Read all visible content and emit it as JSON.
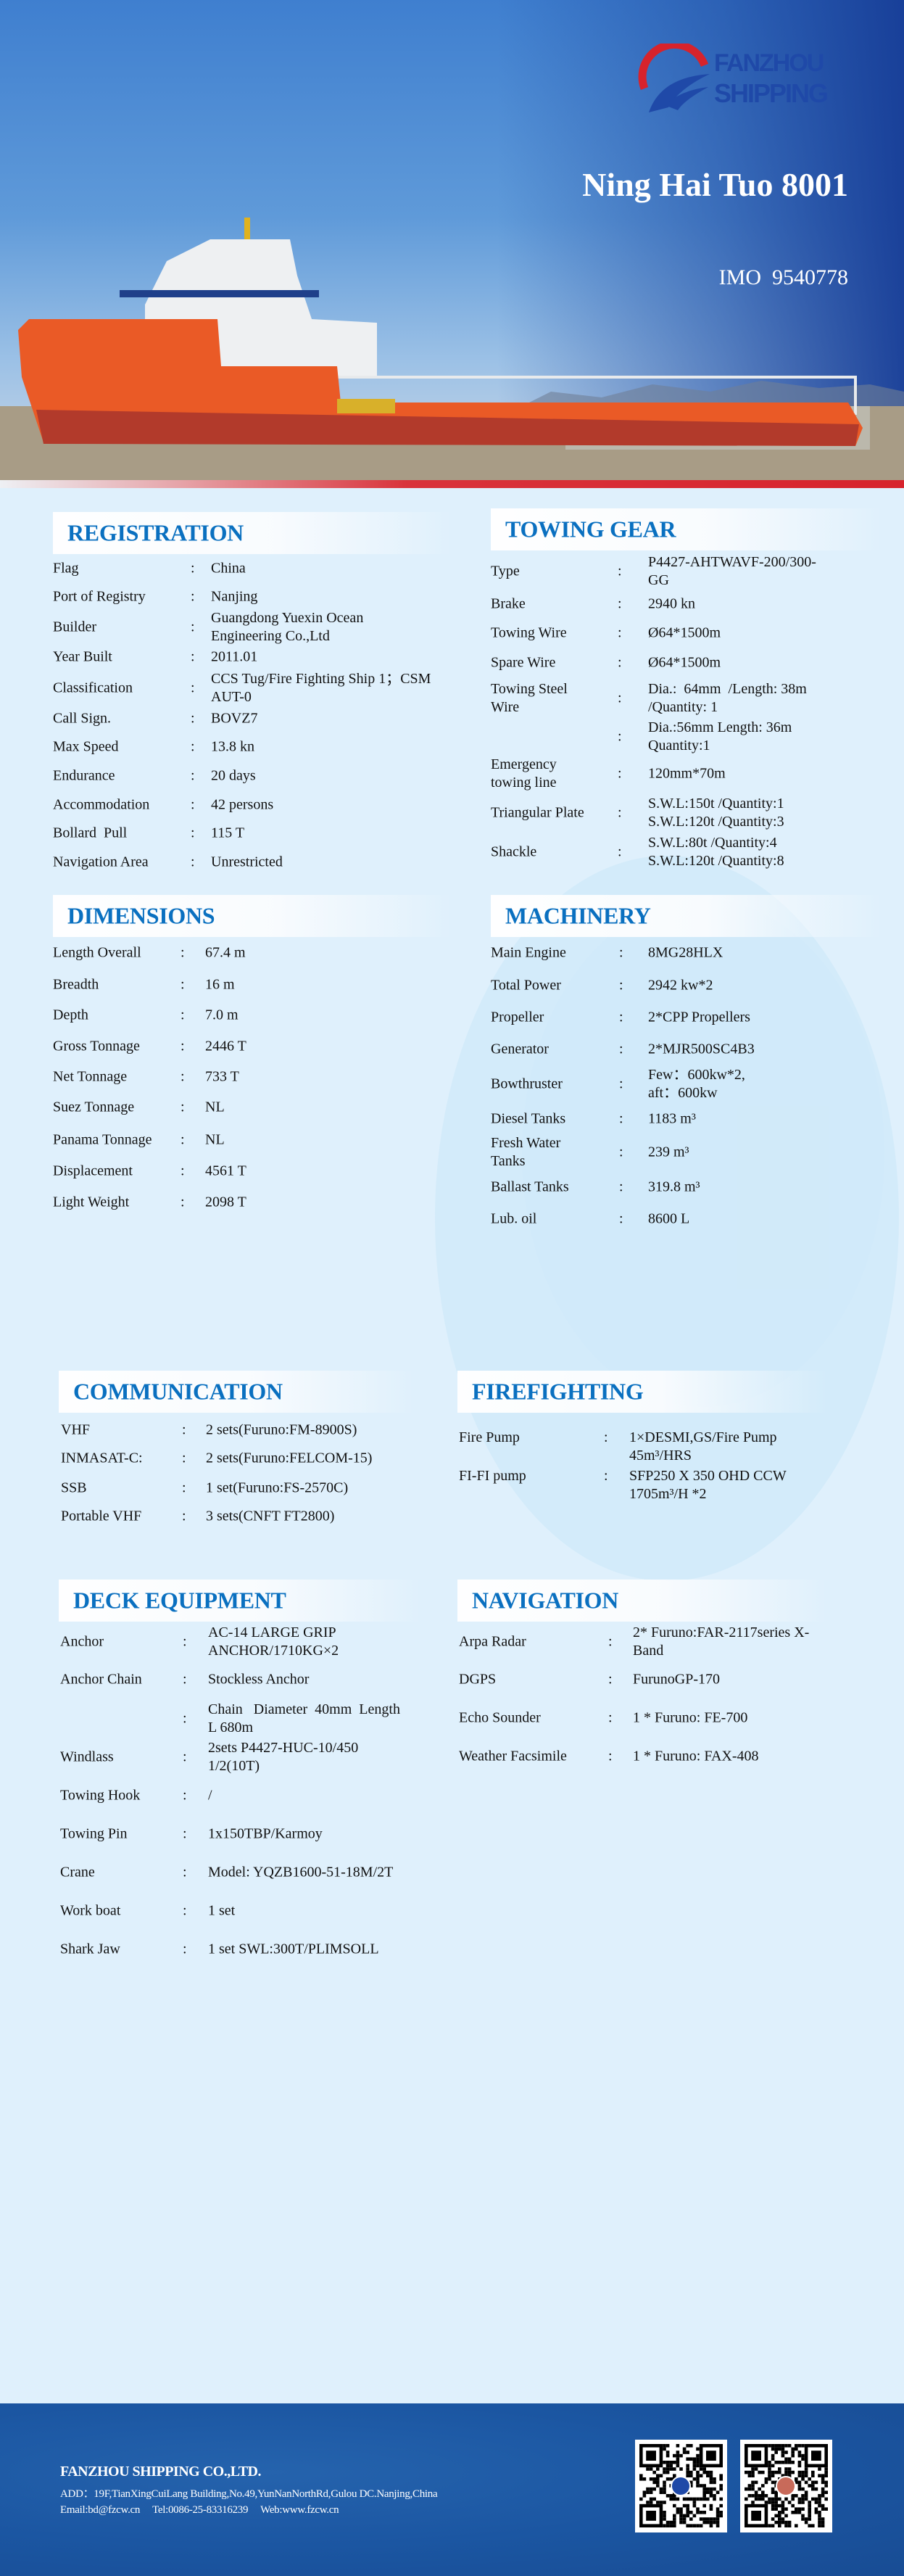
{
  "hero": {
    "logo_text": [
      "FANZHOU",
      "SHIPPING"
    ],
    "vessel_name": "Ning Hai Tuo 8001",
    "imo": "IMO  9540778"
  },
  "colors": {
    "accent": "#0a70c0",
    "brand_red": "#d7232c",
    "brand_blue": "#1f49a8",
    "page_bg": "#dff0fc"
  },
  "sections": {
    "registration": {
      "title": "REGISTRATION",
      "rows": [
        {
          "label": "Flag",
          "value": "China"
        },
        {
          "label": "Port of Registry",
          "value": "Nanjing"
        },
        {
          "label": "Builder",
          "value": "Guangdong Yuexin Ocean\nEngineering Co.,Ltd"
        },
        {
          "label": "Year Built",
          "value": "2011.01"
        },
        {
          "label": "Classification",
          "value": "CCS Tug/Fire Fighting Ship 1；CSM\nAUT-0"
        },
        {
          "label": "Call Sign.",
          "value": "BOVZ7"
        },
        {
          "label": "Max Speed",
          "value": "13.8 kn"
        },
        {
          "label": "Endurance",
          "value": "20 days"
        },
        {
          "label": "Accommodation",
          "value": "42 persons"
        },
        {
          "label": "Bollard  Pull",
          "value": "115 T"
        },
        {
          "label": "Navigation Area",
          "value": "Unrestricted"
        }
      ]
    },
    "towing_gear": {
      "title": "TOWING GEAR",
      "rows": [
        {
          "label": "Type",
          "value": "P4427-AHTWAVF-200/300-\nGG"
        },
        {
          "label": "Brake",
          "value": "2940 kn"
        },
        {
          "label": "Towing Wire",
          "value": "Ø64*1500m"
        },
        {
          "label": "Spare Wire",
          "value": "Ø64*1500m"
        },
        {
          "label": "Towing Steel\nWire",
          "value": "Dia.:  64mm  /Length: 38m\n/Quantity: 1"
        },
        {
          "label": "",
          "value": "Dia.:56mm Length: 36m\nQuantity:1"
        },
        {
          "label": "Emergency\ntowing line",
          "value": "120mm*70m"
        },
        {
          "label": "Triangular Plate",
          "value": "S.W.L:150t /Quantity:1\nS.W.L:120t /Quantity:3"
        },
        {
          "label": "Shackle",
          "value": "S.W.L:80t /Quantity:4\nS.W.L:120t /Quantity:8"
        }
      ]
    },
    "dimensions": {
      "title": "DIMENSIONS",
      "rows": [
        {
          "label": "Length Overall",
          "value": "67.4 m"
        },
        {
          "label": "Breadth",
          "value": "16 m"
        },
        {
          "label": "Depth",
          "value": "7.0 m"
        },
        {
          "label": "Gross Tonnage",
          "value": "2446 T"
        },
        {
          "label": "Net Tonnage",
          "value": "733 T"
        },
        {
          "label": "Suez Tonnage",
          "value": "NL"
        },
        {
          "label": "Panama Tonnage",
          "value": "NL"
        },
        {
          "label": "Displacement",
          "value": "4561 T"
        },
        {
          "label": "Light Weight",
          "value": "2098 T"
        }
      ]
    },
    "machinery": {
      "title": "MACHINERY",
      "rows": [
        {
          "label": "Main Engine",
          "value": "8MG28HLX"
        },
        {
          "label": "Total Power",
          "value": "2942 kw*2"
        },
        {
          "label": "Propeller",
          "value": "2*CPP Propellers"
        },
        {
          "label": "Generator",
          "value": "2*MJR500SC4B3"
        },
        {
          "label": "Bowthruster",
          "value": "Few：600kw*2,\naft：600kw"
        },
        {
          "label": "Diesel Tanks",
          "value": "1183 m³"
        },
        {
          "label": "Fresh Water\nTanks",
          "value": "239 m³"
        },
        {
          "label": "Ballast Tanks",
          "value": "319.8 m³"
        },
        {
          "label": "Lub. oil",
          "value": "8600 L"
        }
      ]
    },
    "communication": {
      "title": "COMMUNICATION",
      "rows": [
        {
          "label": "VHF",
          "value": "2 sets(Furuno:FM-8900S)"
        },
        {
          "label": "INMASAT-C:",
          "value": "2 sets(Furuno:FELCOM-15)"
        },
        {
          "label": "SSB",
          "value": "1 set(Furuno:FS-2570C)"
        },
        {
          "label": "Portable VHF",
          "value": "3 sets(CNFT FT2800)"
        }
      ]
    },
    "firefighting": {
      "title": "FIREFIGHTING",
      "rows": [
        {
          "label": "Fire Pump",
          "value": "1×DESMI,GS/Fire Pump\n45m³/HRS"
        },
        {
          "label": "FI-FI pump",
          "value": "SFP250 X 350 OHD CCW\n1705m³/H *2"
        }
      ]
    },
    "deck_equipment": {
      "title": "DECK EQUIPMENT",
      "rows": [
        {
          "label": "Anchor",
          "value": "AC-14 LARGE GRIP\nANCHOR/1710KG×2"
        },
        {
          "label": "Anchor Chain",
          "value": "Stockless Anchor"
        },
        {
          "label": "",
          "value": "Chain   Diameter  40mm  Length\nL 680m"
        },
        {
          "label": "Windlass",
          "value": "2sets P4427-HUC-10/450\n1/2(10T)"
        },
        {
          "label": "Towing Hook",
          "value": "/"
        },
        {
          "label": "Towing Pin",
          "value": "1x150TBP/Karmoy"
        },
        {
          "label": "Crane",
          "value": "Model: YQZB1600-51-18M/2T"
        },
        {
          "label": "Work boat",
          "value": "1 set"
        },
        {
          "label": "Shark Jaw",
          "value": "1 set SWL:300T/PLIMSOLL"
        }
      ]
    },
    "navigation": {
      "title": "NAVIGATION",
      "rows": [
        {
          "label": "Arpa Radar",
          "value": "2* Furuno:FAR-2117series X-\nBand"
        },
        {
          "label": "DGPS",
          "value": "FurunoGP-170"
        },
        {
          "label": "Echo Sounder",
          "value": "1 * Furuno: FE-700"
        },
        {
          "label": "Weather Facsimile",
          "value": "1 * Furuno: FAX-408"
        }
      ]
    }
  },
  "separator": ":",
  "footer": {
    "company": "FANZHOU SHIPPING CO.,LTD.",
    "address": "ADD：19F,TianXingCuiLang Building,No.49,YunNanNorthRd,Gulou DC.Nanjing,China",
    "email": "Email:bd@fzcw.cn",
    "tel": "Tel:0086-25-83316239",
    "web": "Web:www.fzcw.cn"
  }
}
